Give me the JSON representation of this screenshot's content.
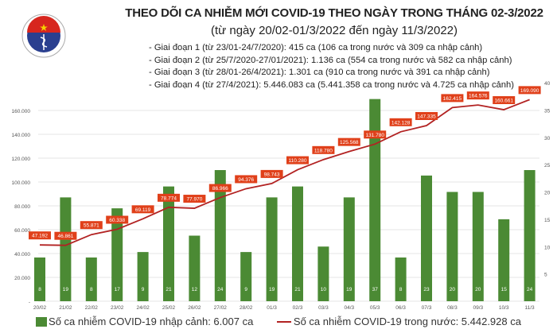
{
  "logo": {
    "text": "BỘ Y TẾ",
    "subtext": "MINISTRY OF HEALTH"
  },
  "header": {
    "title": "THEO DÕI CA NHIỄM MỚI COVID-19 THEO NGÀY TRONG THÁNG 02-3/2022",
    "subtitle": "(từ ngày 20/02-01/3/2022 đến ngày 11/3/2022)",
    "notes": [
      "- Giai đoạn 1 (từ 23/01-24/7/2020): 415 ca (106 ca trong nước và 309 ca nhập cảnh)",
      "- Giai đoạn 2 (từ 25/7/2020-27/01/2021): 1.136 ca (554 ca trong nước và 582 ca nhập cảnh)",
      "- Giai đoạn 3 (từ 28/01-26/4/2021): 1.301 ca (910 ca trong nước và 391 ca nhập cảnh)",
      "- Giai đoạn 4 (từ 27/4/2021): 5.446.083 ca (5.441.358 ca trong nước và 4.725 ca nhập cảnh)"
    ]
  },
  "chart_data": {
    "type": "bar+line",
    "categories": [
      "20/02",
      "21/02",
      "22/02",
      "23/02",
      "24/02",
      "25/02",
      "26/02",
      "27/02",
      "28/02",
      "01/3",
      "02/3",
      "03/3",
      "04/3",
      "05/3",
      "06/3",
      "07/3",
      "08/3",
      "09/3",
      "10/3",
      "11/3"
    ],
    "series": [
      {
        "name": "Số ca nhiễm COVID-19 nhập cảnh: 6.007 ca",
        "type": "bar",
        "axis": "right",
        "color": "#4b8a34",
        "values": [
          8,
          19,
          8,
          17,
          9,
          21,
          12,
          24,
          9,
          19,
          21,
          10,
          19,
          37,
          8,
          23,
          20,
          20,
          15,
          24
        ],
        "labels": [
          "8",
          "19",
          "8",
          "17",
          "9",
          "21",
          "12",
          "24",
          "9",
          "19",
          "21",
          "10",
          "19",
          "37",
          "8",
          "23",
          "20",
          "20",
          "15",
          "24"
        ]
      },
      {
        "name": "Số ca nhiễm COVID-19 trong nước: 5.442.928 ca",
        "type": "line",
        "axis": "left",
        "color": "#b22222",
        "values": [
          47192,
          46861,
          55871,
          60338,
          69119,
          78774,
          77970,
          86966,
          94376,
          98743,
          110280,
          118780,
          125568,
          131780,
          142128,
          147335,
          162415,
          164576,
          160661,
          169090
        ],
        "labels": [
          "47.192",
          "46.861",
          "55.871",
          "60.338",
          "69.119",
          "78.774",
          "77.970",
          "86.966",
          "94.376",
          "98.743",
          "110.280",
          "118.780",
          "125.568",
          "131.780",
          "142.128",
          "147.335",
          "162.415",
          "164.576",
          "160.661",
          "169.090"
        ]
      }
    ],
    "y_left": {
      "range": [
        0,
        180000
      ],
      "ticks": [
        "-",
        "20.000",
        "40.000",
        "60.000",
        "80.000",
        "100.000",
        "120.000",
        "140.000",
        "160.000"
      ]
    },
    "y_right": {
      "range": [
        0,
        40
      ],
      "ticks": [
        "",
        "5",
        "10",
        "15",
        "20",
        "25",
        "30",
        "35",
        "40"
      ]
    },
    "grid": true,
    "label_color": "#e0401a",
    "legend_position": "bottom"
  }
}
